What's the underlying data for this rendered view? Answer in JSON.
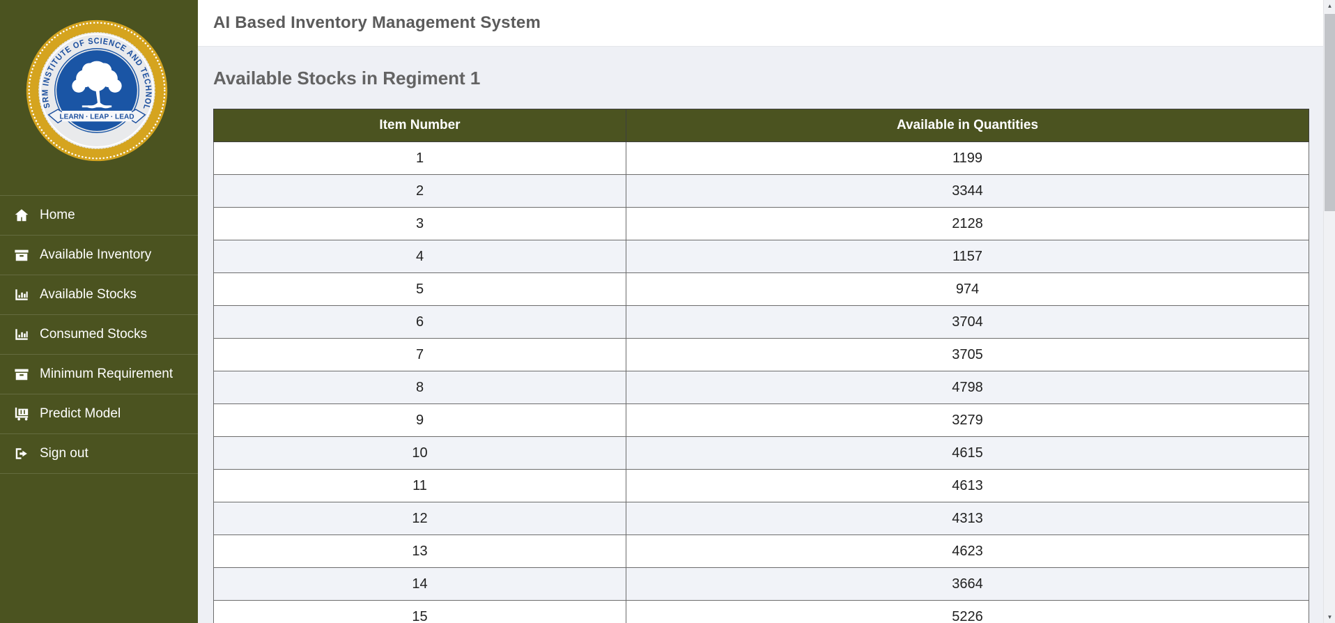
{
  "header": {
    "title": "AI Based Inventory Management System"
  },
  "sidebar": {
    "logo": {
      "ring_text": "SRM  INSTITUTE OF SCIENCE AND TECHNOLOGY",
      "banner": "LEARN · LEAP · LEAD"
    },
    "items": [
      {
        "label": "Home",
        "icon": "home-icon"
      },
      {
        "label": "Available Inventory",
        "icon": "archive-box-icon"
      },
      {
        "label": "Available Stocks",
        "icon": "bar-chart-icon"
      },
      {
        "label": "Consumed Stocks",
        "icon": "bar-chart-icon"
      },
      {
        "label": "Minimum Requirement",
        "icon": "archive-box-icon"
      },
      {
        "label": "Predict Model",
        "icon": "luggage-cart-icon"
      },
      {
        "label": "Sign out",
        "icon": "sign-out-icon"
      }
    ]
  },
  "main": {
    "heading": "Available Stocks in Regiment 1"
  },
  "table": {
    "columns": [
      "Item Number",
      "Available in Quantities"
    ],
    "rows": [
      {
        "item": "1",
        "qty": "1199"
      },
      {
        "item": "2",
        "qty": "3344"
      },
      {
        "item": "3",
        "qty": "2128"
      },
      {
        "item": "4",
        "qty": "1157"
      },
      {
        "item": "5",
        "qty": "974"
      },
      {
        "item": "6",
        "qty": "3704"
      },
      {
        "item": "7",
        "qty": "3705"
      },
      {
        "item": "8",
        "qty": "4798"
      },
      {
        "item": "9",
        "qty": "3279"
      },
      {
        "item": "10",
        "qty": "4615"
      },
      {
        "item": "11",
        "qty": "4613"
      },
      {
        "item": "12",
        "qty": "4313"
      },
      {
        "item": "13",
        "qty": "4623"
      },
      {
        "item": "14",
        "qty": "3664"
      },
      {
        "item": "15",
        "qty": "5226"
      }
    ]
  },
  "colors": {
    "army_green": "#4b5320",
    "logo_gold": "#d5a41f",
    "logo_blue": "#1a55a5",
    "page_bg": "#eef0f5",
    "stripe": "#f1f3f8"
  }
}
